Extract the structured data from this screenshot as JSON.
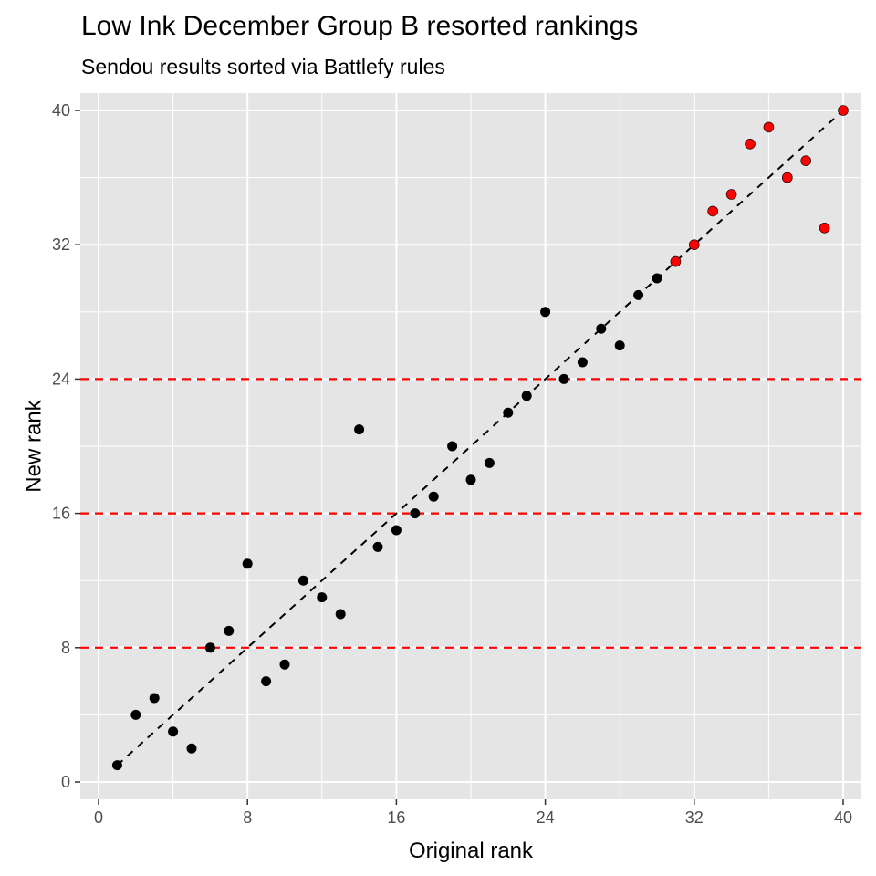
{
  "chart_data": {
    "type": "scatter",
    "title": "Low Ink December Group B resorted rankings",
    "subtitle": "Sendou results sorted via Battlefy rules",
    "xlabel": "Original rank",
    "ylabel": "New rank",
    "xlim": [
      0,
      40
    ],
    "ylim": [
      0,
      40
    ],
    "x_ticks": [
      0,
      8,
      16,
      24,
      32,
      40
    ],
    "y_ticks": [
      0,
      8,
      16,
      24,
      32,
      40
    ],
    "grid": true,
    "reference_line": {
      "style": "dashed",
      "color": "#000000",
      "from": [
        1,
        1
      ],
      "to": [
        40,
        40
      ]
    },
    "hlines": [
      {
        "y": 8,
        "color": "#ff0000",
        "style": "dashed"
      },
      {
        "y": 16,
        "color": "#ff0000",
        "style": "dashed"
      },
      {
        "y": 24,
        "color": "#ff0000",
        "style": "dashed"
      }
    ],
    "colors": {
      "panel": "#e5e5e5",
      "point_default": "#000000",
      "point_highlight": "#ff0000"
    },
    "points": [
      {
        "x": 1,
        "y": 1,
        "color": "#000000"
      },
      {
        "x": 2,
        "y": 4,
        "color": "#000000"
      },
      {
        "x": 3,
        "y": 5,
        "color": "#000000"
      },
      {
        "x": 4,
        "y": 3,
        "color": "#000000"
      },
      {
        "x": 5,
        "y": 2,
        "color": "#000000"
      },
      {
        "x": 6,
        "y": 8,
        "color": "#000000"
      },
      {
        "x": 7,
        "y": 9,
        "color": "#000000"
      },
      {
        "x": 8,
        "y": 13,
        "color": "#000000"
      },
      {
        "x": 9,
        "y": 6,
        "color": "#000000"
      },
      {
        "x": 10,
        "y": 7,
        "color": "#000000"
      },
      {
        "x": 11,
        "y": 12,
        "color": "#000000"
      },
      {
        "x": 12,
        "y": 11,
        "color": "#000000"
      },
      {
        "x": 13,
        "y": 10,
        "color": "#000000"
      },
      {
        "x": 14,
        "y": 21,
        "color": "#000000"
      },
      {
        "x": 15,
        "y": 14,
        "color": "#000000"
      },
      {
        "x": 16,
        "y": 15,
        "color": "#000000"
      },
      {
        "x": 17,
        "y": 16,
        "color": "#000000"
      },
      {
        "x": 18,
        "y": 17,
        "color": "#000000"
      },
      {
        "x": 19,
        "y": 20,
        "color": "#000000"
      },
      {
        "x": 20,
        "y": 18,
        "color": "#000000"
      },
      {
        "x": 21,
        "y": 19,
        "color": "#000000"
      },
      {
        "x": 22,
        "y": 22,
        "color": "#000000"
      },
      {
        "x": 23,
        "y": 23,
        "color": "#000000"
      },
      {
        "x": 24,
        "y": 28,
        "color": "#000000"
      },
      {
        "x": 25,
        "y": 24,
        "color": "#000000"
      },
      {
        "x": 26,
        "y": 25,
        "color": "#000000"
      },
      {
        "x": 27,
        "y": 27,
        "color": "#000000"
      },
      {
        "x": 28,
        "y": 26,
        "color": "#000000"
      },
      {
        "x": 29,
        "y": 29,
        "color": "#000000"
      },
      {
        "x": 30,
        "y": 30,
        "color": "#000000"
      },
      {
        "x": 31,
        "y": 31,
        "color": "#ff0000"
      },
      {
        "x": 32,
        "y": 32,
        "color": "#ff0000"
      },
      {
        "x": 33,
        "y": 34,
        "color": "#ff0000"
      },
      {
        "x": 34,
        "y": 35,
        "color": "#ff0000"
      },
      {
        "x": 35,
        "y": 38,
        "color": "#ff0000"
      },
      {
        "x": 36,
        "y": 39,
        "color": "#ff0000"
      },
      {
        "x": 37,
        "y": 36,
        "color": "#ff0000"
      },
      {
        "x": 38,
        "y": 37,
        "color": "#ff0000"
      },
      {
        "x": 39,
        "y": 33,
        "color": "#ff0000"
      },
      {
        "x": 40,
        "y": 40,
        "color": "#ff0000"
      }
    ]
  }
}
